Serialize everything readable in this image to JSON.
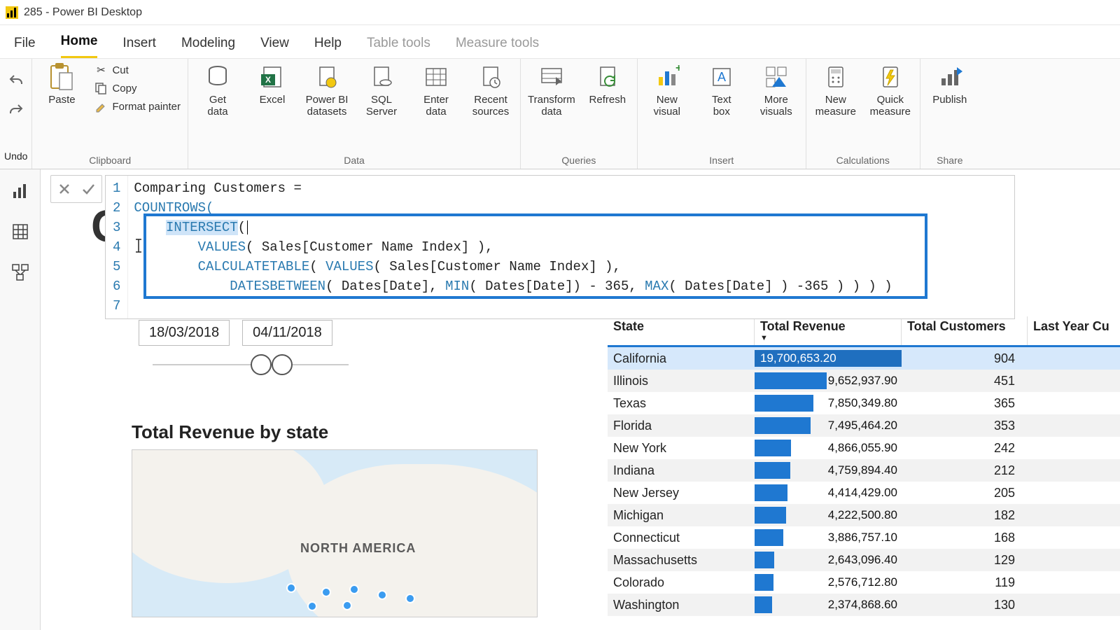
{
  "window_title": "285 - Power BI Desktop",
  "accent_color": "#f2c811",
  "menu": {
    "file": "File",
    "items": [
      "Home",
      "Insert",
      "Modeling",
      "View",
      "Help"
    ],
    "context_items": [
      "Table tools",
      "Measure tools"
    ],
    "active": "Home"
  },
  "ribbon": {
    "undo_group": "Undo",
    "clipboard": {
      "label": "Clipboard",
      "paste": "Paste",
      "cut": "Cut",
      "copy": "Copy",
      "format_painter": "Format painter"
    },
    "data": {
      "label": "Data",
      "get_data": "Get\ndata",
      "excel": "Excel",
      "pbi_ds": "Power BI\ndatasets",
      "sql": "SQL\nServer",
      "enter": "Enter\ndata",
      "recent": "Recent\nsources"
    },
    "queries": {
      "label": "Queries",
      "transform": "Transform\ndata",
      "refresh": "Refresh"
    },
    "insert": {
      "label": "Insert",
      "new_visual": "New\nvisual",
      "text_box": "Text\nbox",
      "more_visuals": "More\nvisuals"
    },
    "calc": {
      "label": "Calculations",
      "new_measure": "New\nmeasure",
      "quick_measure": "Quick\nmeasure"
    },
    "share": {
      "label": "Share",
      "publish": "Publish"
    }
  },
  "formula": {
    "line1": "Comparing Customers =",
    "line2a": "COUNTROWS(",
    "line3_fn": "INTERSECT",
    "line3_tail": "(",
    "line4_fn": "VALUES",
    "line4_tail": "( Sales[Customer Name Index] ),",
    "line5_fn1": "CALCULATETABLE",
    "line5_mid": "( ",
    "line5_fn2": "VALUES",
    "line5_tail": "( Sales[Customer Name Index] ),",
    "line6_fn": "DATESBETWEEN",
    "line6_mid1": "( Dates[Date], ",
    "line6_min": "MIN",
    "line6_mid2": "( Dates[Date]) - 365, ",
    "line6_max": "MAX",
    "line6_tail": "( Dates[Date] ) -365 ) ) ) )",
    "gutter": [
      "1",
      "2",
      "3",
      "4",
      "5",
      "6",
      "7"
    ]
  },
  "report_title": "Co",
  "slicer": {
    "from": "18/03/2018",
    "to": "04/11/2018"
  },
  "map_title": "Total Revenue by state",
  "map_label": "NORTH AMERICA",
  "table": {
    "headers": [
      "State",
      "Total Revenue",
      "Total Customers",
      "Last Year Cu"
    ],
    "sort_col": 1,
    "max_rev": 19700653.2,
    "rows": [
      {
        "state": "California",
        "rev": "19,700,653.20",
        "rev_n": 19700653.2,
        "cust": "904",
        "sel": true
      },
      {
        "state": "Illinois",
        "rev": "9,652,937.90",
        "rev_n": 9652937.9,
        "cust": "451"
      },
      {
        "state": "Texas",
        "rev": "7,850,349.80",
        "rev_n": 7850349.8,
        "cust": "365"
      },
      {
        "state": "Florida",
        "rev": "7,495,464.20",
        "rev_n": 7495464.2,
        "cust": "353"
      },
      {
        "state": "New York",
        "rev": "4,866,055.90",
        "rev_n": 4866055.9,
        "cust": "242"
      },
      {
        "state": "Indiana",
        "rev": "4,759,894.40",
        "rev_n": 4759894.4,
        "cust": "212"
      },
      {
        "state": "New Jersey",
        "rev": "4,414,429.00",
        "rev_n": 4414429.0,
        "cust": "205"
      },
      {
        "state": "Michigan",
        "rev": "4,222,500.80",
        "rev_n": 4222500.8,
        "cust": "182"
      },
      {
        "state": "Connecticut",
        "rev": "3,886,757.10",
        "rev_n": 3886757.1,
        "cust": "168"
      },
      {
        "state": "Massachusetts",
        "rev": "2,643,096.40",
        "rev_n": 2643096.4,
        "cust": "129"
      },
      {
        "state": "Colorado",
        "rev": "2,576,712.80",
        "rev_n": 2576712.8,
        "cust": "119"
      },
      {
        "state": "Washington",
        "rev": "2,374,868.60",
        "rev_n": 2374868.6,
        "cust": "130"
      }
    ]
  },
  "colors": {
    "bar": "#1f78d1",
    "bar_sel_bg": "#d6e8fb",
    "highlight_border": "#1f78d1"
  }
}
